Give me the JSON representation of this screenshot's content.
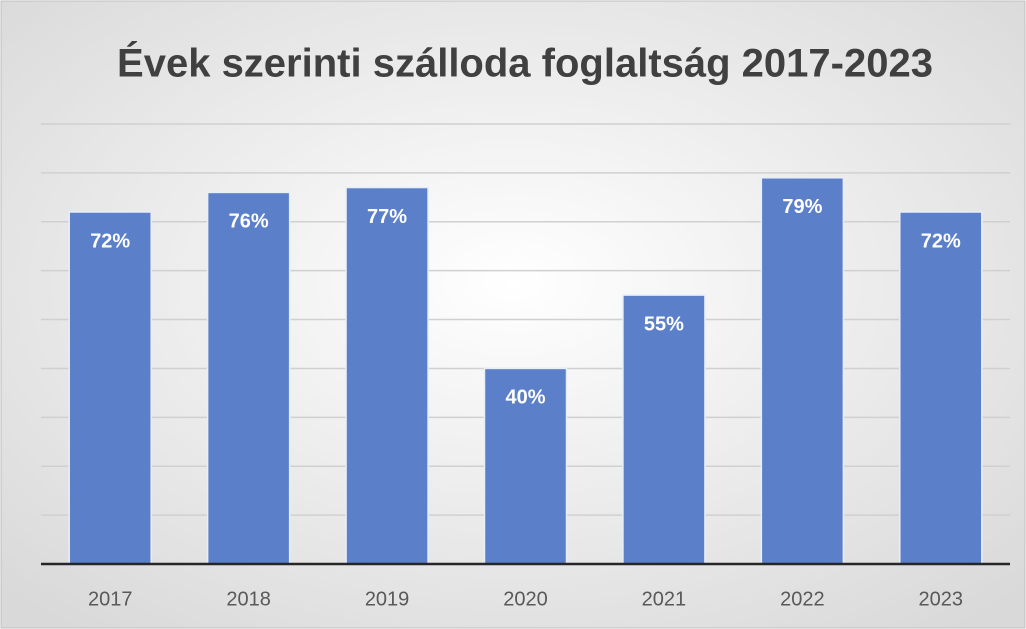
{
  "chart_data": {
    "type": "bar",
    "title": "Évek szerinti szálloda foglaltság 2017-2023",
    "categories": [
      "2017",
      "2018",
      "2019",
      "2020",
      "2021",
      "2022",
      "2023"
    ],
    "values": [
      72,
      76,
      77,
      40,
      55,
      79,
      72
    ],
    "value_labels": [
      "72%",
      "76%",
      "77%",
      "40%",
      "55%",
      "79%",
      "72%"
    ],
    "color": "#5b7fc8",
    "ylim": [
      0,
      90
    ],
    "yticks": [
      0,
      10,
      20,
      30,
      40,
      50,
      60,
      70,
      80,
      90
    ],
    "grid": true
  }
}
